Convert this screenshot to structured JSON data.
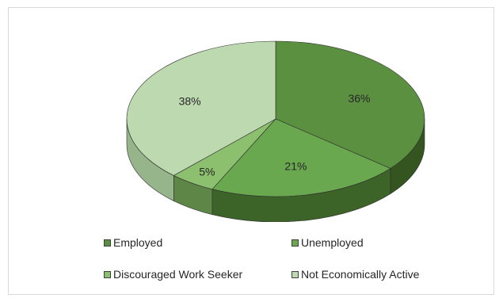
{
  "chart_data": {
    "type": "pie",
    "style": "3d",
    "title": "",
    "slices": [
      {
        "label": "Employed",
        "value": 36,
        "display": "36%",
        "color": "#5A9040",
        "side_color": "#34551F"
      },
      {
        "label": "Unemployed",
        "value": 21,
        "display": "21%",
        "color": "#6AA84F",
        "side_color": "#3D6428"
      },
      {
        "label": "Discouraged Work Seeker",
        "value": 5,
        "display": "5%",
        "color": "#8CBF6E",
        "side_color": "#5E8747"
      },
      {
        "label": "Not Economically Active",
        "value": 38,
        "display": "38%",
        "color": "#BDD9B0",
        "side_color": "#96B58A"
      }
    ],
    "legend": {
      "position": "bottom",
      "items": [
        "Employed",
        "Unemployed",
        "Discouraged Work Seeker",
        "Not Economically Active"
      ]
    }
  }
}
